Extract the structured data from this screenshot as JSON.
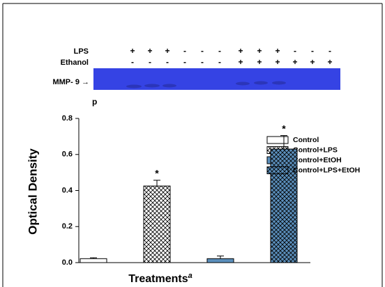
{
  "gel": {
    "rows": [
      {
        "label": "LPS",
        "signs": [
          "+",
          "+",
          "+",
          "-",
          "-",
          "-",
          "+",
          "+",
          "+",
          "-",
          "-",
          "-"
        ]
      },
      {
        "label": "Ethanol",
        "signs": [
          "-",
          "-",
          "-",
          "-",
          "-",
          "-",
          "+",
          "+",
          "+",
          "+",
          "+",
          "+"
        ]
      }
    ],
    "band_label": "MMP- 9 →",
    "panel_label": "p"
  },
  "chart_data": {
    "type": "bar",
    "ylabel": "Optical Density",
    "xlabel": "Treatments",
    "xlabel_superscript": "a",
    "categories": [
      null,
      null,
      null,
      null
    ],
    "series": [
      {
        "name": "Control",
        "color": "#ffffff",
        "hatch": false,
        "values": [
          0.022,
          null,
          null,
          null
        ],
        "errors": [
          0.005,
          null,
          null,
          null
        ]
      },
      {
        "name": "Control+LPS",
        "color": "#ffffff",
        "hatch": true,
        "values": [
          null,
          0.425,
          null,
          null
        ],
        "errors": [
          null,
          0.032,
          null,
          null
        ],
        "annotation": "*"
      },
      {
        "name": "Control+EtOH",
        "color": "#5b8fbc",
        "hatch": false,
        "values": [
          null,
          null,
          0.022,
          null
        ],
        "errors": [
          null,
          null,
          0.015,
          null
        ]
      },
      {
        "name": "Control+LPS+EtOH",
        "color": "#5b8fbc",
        "hatch": true,
        "values": [
          null,
          null,
          null,
          0.63
        ],
        "errors": [
          null,
          null,
          null,
          0.075
        ],
        "annotation": "*"
      }
    ],
    "ylim": [
      0,
      0.8
    ],
    "yticks": [
      {
        "value": 0,
        "label": "0.0"
      },
      0.2,
      0.4,
      0.6,
      0.8
    ]
  }
}
